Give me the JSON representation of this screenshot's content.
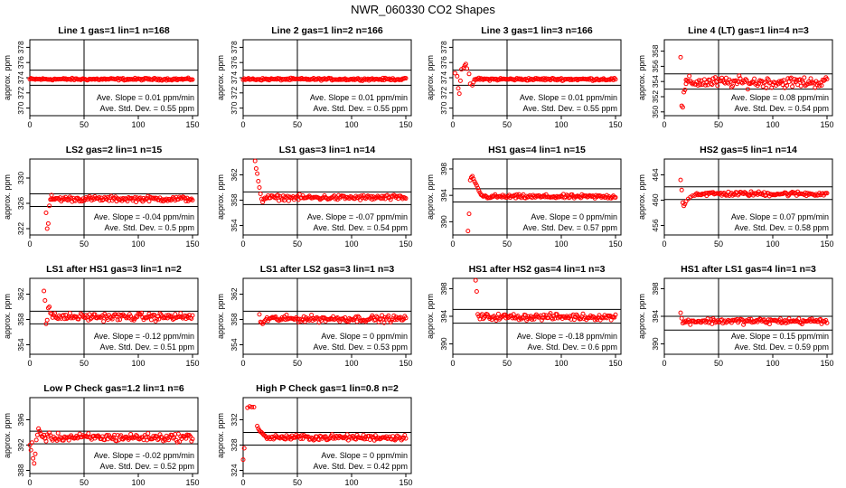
{
  "figure": {
    "title": "NWR_060330  CO2 Shapes"
  },
  "colors": {
    "points": "#ff0000",
    "axes": "#000000"
  },
  "chart_data": [
    {
      "type": "scatter",
      "title": "Line 1 gas=1 lin=1 n=168",
      "ylabel": "approx. ppm",
      "xlim": [
        0,
        155
      ],
      "ylim": [
        369,
        379
      ],
      "x_ticks": [
        0,
        50,
        100,
        150
      ],
      "y_ticks": [
        370,
        372,
        374,
        376,
        378
      ],
      "hlines": [
        373,
        375
      ],
      "vline": 50,
      "slope_text": "Ave. Slope =  0.01  ppm/min",
      "sd_text": "Ave. Std. Dev. =  0.55  ppm",
      "series": {
        "x_start": 0,
        "x_end": 150,
        "base": 373.8,
        "noise": 0.07,
        "head": []
      }
    },
    {
      "type": "scatter",
      "title": "Line 2 gas=1 lin=2 n=166",
      "ylabel": "approx. ppm",
      "xlim": [
        0,
        155
      ],
      "ylim": [
        369,
        379
      ],
      "x_ticks": [
        0,
        50,
        100,
        150
      ],
      "y_ticks": [
        370,
        372,
        374,
        376,
        378
      ],
      "hlines": [
        373,
        375
      ],
      "vline": 50,
      "slope_text": "Ave. Slope =  0.01  ppm/min",
      "sd_text": "Ave. Std. Dev. =  0.55  ppm",
      "series": {
        "x_start": 0,
        "x_end": 150,
        "base": 373.8,
        "noise": 0.07,
        "head": []
      }
    },
    {
      "type": "scatter",
      "title": "Line 3 gas=1 lin=3 n=166",
      "ylabel": "approx. ppm",
      "xlim": [
        0,
        155
      ],
      "ylim": [
        369,
        379
      ],
      "x_ticks": [
        0,
        50,
        100,
        150
      ],
      "y_ticks": [
        370,
        372,
        374,
        376,
        378
      ],
      "hlines": [
        373,
        375
      ],
      "vline": 50,
      "slope_text": "Ave. Slope =  0.01  ppm/min",
      "sd_text": "Ave. Std. Dev. =  0.55  ppm",
      "series": {
        "x_start": 20,
        "x_end": 150,
        "base": 373.8,
        "noise": 0.08,
        "head": [
          [
            2,
            374.6
          ],
          [
            4,
            374.2
          ],
          [
            5,
            372.6
          ],
          [
            6,
            371.9
          ],
          [
            7,
            373.6
          ],
          [
            8,
            375.1
          ],
          [
            10,
            375.3
          ],
          [
            11,
            375.6
          ],
          [
            12,
            375.8
          ],
          [
            13,
            375.2
          ],
          [
            15,
            374.5
          ],
          [
            16,
            373.2
          ],
          [
            18,
            373.0
          ],
          [
            19,
            373.4
          ]
        ]
      }
    },
    {
      "type": "scatter",
      "title": "Line 4 (LT) gas=1 lin=4 n=3",
      "ylabel": "approx. ppm",
      "xlim": [
        0,
        155
      ],
      "ylim": [
        349.5,
        359.5
      ],
      "x_ticks": [
        0,
        50,
        100,
        150
      ],
      "y_ticks": [
        350,
        352,
        354,
        356,
        358
      ],
      "hlines": [
        353,
        355
      ],
      "vline": 50,
      "slope_text": "Ave. Slope =  0.08  ppm/min",
      "sd_text": "Ave. Std. Dev. =  0.54  ppm",
      "series": {
        "x_start": 20,
        "x_end": 150,
        "base": 353.9,
        "noise": 0.35,
        "head": [
          [
            15,
            357.2
          ],
          [
            16,
            350.8
          ],
          [
            17,
            350.6
          ],
          [
            18,
            352.6
          ],
          [
            19,
            352.9
          ],
          [
            20,
            353.7
          ]
        ]
      }
    },
    {
      "type": "scatter",
      "title": "LS2 gas=2 lin=1 n=15",
      "ylabel": "approx. ppm",
      "xlim": [
        0,
        155
      ],
      "ylim": [
        321,
        333
      ],
      "x_ticks": [
        0,
        50,
        100,
        150
      ],
      "y_ticks": [
        322,
        326,
        330
      ],
      "hlines": [
        325.5,
        327.5
      ],
      "vline": 50,
      "slope_text": "Ave. Slope =  -0.04  ppm/min",
      "sd_text": "Ave. Std. Dev. =  0.5  ppm",
      "series": {
        "x_start": 20,
        "x_end": 150,
        "base": 326.7,
        "noise": 0.2,
        "head": [
          [
            15,
            324.5
          ],
          [
            16,
            322.0
          ],
          [
            17,
            322.8
          ],
          [
            18,
            325.6
          ],
          [
            19,
            326.6
          ],
          [
            20,
            327.3
          ]
        ]
      }
    },
    {
      "type": "scatter",
      "title": "LS1 gas=3 lin=1 n=14",
      "ylabel": "approx. ppm",
      "xlim": [
        0,
        155
      ],
      "ylim": [
        352.5,
        364.5
      ],
      "x_ticks": [
        0,
        50,
        100,
        150
      ],
      "y_ticks": [
        354,
        358,
        362
      ],
      "hlines": [
        357.3,
        359.3
      ],
      "vline": 50,
      "slope_text": "Ave. Slope =  -0.07  ppm/min",
      "sd_text": "Ave. Std. Dev. =  0.54  ppm",
      "series": {
        "x_start": 20,
        "x_end": 150,
        "base": 358.4,
        "noise": 0.2,
        "head": [
          [
            11,
            364.2
          ],
          [
            12,
            363.0
          ],
          [
            13,
            362.2
          ],
          [
            14,
            361.0
          ],
          [
            15,
            360.0
          ],
          [
            16,
            359.0
          ],
          [
            17,
            358.2
          ],
          [
            18,
            357.7
          ],
          [
            19,
            358.1
          ]
        ]
      }
    },
    {
      "type": "scatter",
      "title": "HS1 gas=4 lin=1 n=15",
      "ylabel": "approx. ppm",
      "xlim": [
        0,
        155
      ],
      "ylim": [
        388,
        399.5
      ],
      "x_ticks": [
        0,
        50,
        100,
        150
      ],
      "y_ticks": [
        390,
        394,
        398
      ],
      "hlines": [
        393,
        395
      ],
      "vline": 50,
      "slope_text": "Ave. Slope =  0  ppm/min",
      "sd_text": "Ave. Std. Dev. =  0.57  ppm",
      "series": {
        "x_start": 28,
        "x_end": 150,
        "base": 393.8,
        "noise": 0.15,
        "head": [
          [
            14,
            388.6
          ],
          [
            15,
            391.2
          ],
          [
            16,
            396.3
          ],
          [
            17,
            396.7
          ],
          [
            18,
            396.9
          ],
          [
            19,
            396.5
          ],
          [
            20,
            396.1
          ],
          [
            21,
            395.8
          ],
          [
            22,
            395.5
          ],
          [
            23,
            395.1
          ],
          [
            24,
            394.7
          ],
          [
            25,
            394.4
          ],
          [
            26,
            394.1
          ],
          [
            27,
            394.0
          ]
        ]
      }
    },
    {
      "type": "scatter",
      "title": "HS2 gas=5 lin=1 n=14",
      "ylabel": "approx. ppm",
      "xlim": [
        0,
        155
      ],
      "ylim": [
        454.5,
        466.5
      ],
      "x_ticks": [
        0,
        50,
        100,
        150
      ],
      "y_ticks": [
        456,
        460,
        464
      ],
      "hlines": [
        460.1,
        462.1
      ],
      "vline": 50,
      "slope_text": "Ave. Slope =  0.07  ppm/min",
      "sd_text": "Ave. Std. Dev. =  0.58  ppm",
      "series": {
        "x_start": 28,
        "x_end": 150,
        "base": 461.0,
        "noise": 0.18,
        "head": [
          [
            15,
            463.2
          ],
          [
            16,
            461.6
          ],
          [
            17,
            459.6
          ],
          [
            18,
            459.1
          ],
          [
            19,
            459.4
          ],
          [
            20,
            459.8
          ],
          [
            22,
            460.2
          ],
          [
            24,
            460.5
          ],
          [
            26,
            460.7
          ]
        ]
      }
    },
    {
      "type": "scatter",
      "title": "LS1 after HS1 gas=3 lin=1 n=2",
      "ylabel": "approx. ppm",
      "xlim": [
        0,
        155
      ],
      "ylim": [
        352.5,
        364.5
      ],
      "x_ticks": [
        0,
        50,
        100,
        150
      ],
      "y_ticks": [
        354,
        358,
        362
      ],
      "hlines": [
        357.3,
        359.3
      ],
      "vline": 50,
      "slope_text": "Ave. Slope =  -0.12  ppm/min",
      "sd_text": "Ave. Std. Dev. =  0.51  ppm",
      "series": {
        "x_start": 22,
        "x_end": 150,
        "base": 358.4,
        "noise": 0.28,
        "head": [
          [
            13,
            362.5
          ],
          [
            14,
            361.0
          ],
          [
            15,
            357.3
          ],
          [
            16,
            357.9
          ],
          [
            17,
            359.8
          ],
          [
            18,
            360.0
          ],
          [
            19,
            359.0
          ],
          [
            20,
            358.9
          ],
          [
            21,
            358.3
          ]
        ]
      }
    },
    {
      "type": "scatter",
      "title": "LS1 after LS2 gas=3 lin=1 n=3",
      "ylabel": "approx. ppm",
      "xlim": [
        0,
        155
      ],
      "ylim": [
        352.5,
        364.5
      ],
      "x_ticks": [
        0,
        50,
        100,
        150
      ],
      "y_ticks": [
        354,
        358,
        362
      ],
      "hlines": [
        357.3,
        359.3
      ],
      "vline": 50,
      "slope_text": "Ave. Slope =  0  ppm/min",
      "sd_text": "Ave. Std. Dev. =  0.53  ppm",
      "series": {
        "x_start": 22,
        "x_end": 150,
        "base": 358.1,
        "noise": 0.25,
        "head": [
          [
            15,
            358.8
          ],
          [
            16,
            357.6
          ],
          [
            17,
            357.5
          ],
          [
            18,
            357.3
          ],
          [
            19,
            357.6
          ],
          [
            20,
            357.8
          ],
          [
            21,
            358.0
          ]
        ]
      }
    },
    {
      "type": "scatter",
      "title": "HS1 after HS2 gas=4 lin=1 n=3",
      "ylabel": "approx. ppm",
      "xlim": [
        0,
        155
      ],
      "ylim": [
        388.5,
        399.5
      ],
      "x_ticks": [
        0,
        50,
        100,
        150
      ],
      "y_ticks": [
        390,
        394,
        398
      ],
      "hlines": [
        393,
        395
      ],
      "vline": 50,
      "slope_text": "Ave. Slope =  -0.18  ppm/min",
      "sd_text": "Ave. Std. Dev. =  0.6  ppm",
      "series": {
        "x_start": 28,
        "x_end": 150,
        "base": 393.9,
        "noise": 0.22,
        "head": [
          [
            21,
            399.2
          ],
          [
            22,
            397.6
          ],
          [
            23,
            394.3
          ],
          [
            24,
            394.0
          ],
          [
            25,
            393.6
          ],
          [
            26,
            394.1
          ],
          [
            27,
            394.3
          ]
        ]
      }
    },
    {
      "type": "scatter",
      "title": "HS1 after LS1 gas=4 lin=1 n=3",
      "ylabel": "approx. ppm",
      "xlim": [
        0,
        155
      ],
      "ylim": [
        388.5,
        399.5
      ],
      "x_ticks": [
        0,
        50,
        100,
        150
      ],
      "y_ticks": [
        390,
        394,
        398
      ],
      "hlines": [
        392,
        394
      ],
      "vline": 50,
      "slope_text": "Ave. Slope =  0.15  ppm/min",
      "sd_text": "Ave. Std. Dev. =  0.59  ppm",
      "series": {
        "x_start": 20,
        "x_end": 150,
        "base": 393.3,
        "noise": 0.2,
        "head": [
          [
            15,
            394.5
          ],
          [
            16,
            393.7
          ],
          [
            17,
            393.0
          ],
          [
            18,
            393.2
          ],
          [
            19,
            393.1
          ]
        ]
      }
    },
    {
      "type": "scatter",
      "title": "Low P Check gas=1.2 lin=1 n=6",
      "ylabel": "approx. ppm",
      "xlim": [
        0,
        155
      ],
      "ylim": [
        387.5,
        399.5
      ],
      "x_ticks": [
        0,
        50,
        100,
        150
      ],
      "y_ticks": [
        388,
        392,
        396
      ],
      "hlines": [
        392.2,
        394.2
      ],
      "vline": 50,
      "slope_text": "Ave. Slope =  -0.02  ppm/min",
      "sd_text": "Ave. Std. Dev. =  0.52  ppm",
      "series": {
        "x_start": 12,
        "x_end": 150,
        "base": 393.2,
        "noise": 0.3,
        "head": [
          [
            0,
            392.0
          ],
          [
            1,
            391.2
          ],
          [
            2,
            392.4
          ],
          [
            3,
            389.9
          ],
          [
            4,
            389.1
          ],
          [
            5,
            390.6
          ],
          [
            6,
            392.8
          ],
          [
            7,
            393.6
          ],
          [
            8,
            394.6
          ],
          [
            9,
            394.2
          ],
          [
            10,
            393.8
          ],
          [
            11,
            393.4
          ]
        ]
      }
    },
    {
      "type": "scatter",
      "title": "High P Check gas=1 lin=0.8 n=2",
      "ylabel": "approx. ppm",
      "xlim": [
        0,
        155
      ],
      "ylim": [
        323.5,
        335.5
      ],
      "x_ticks": [
        0,
        50,
        100,
        150
      ],
      "y_ticks": [
        324,
        328,
        332
      ],
      "hlines": [
        328,
        330
      ],
      "vline": 50,
      "slope_text": "Ave. Slope =  0  ppm/min",
      "sd_text": "Ave. Std. Dev. =  0.42  ppm",
      "series": {
        "x_start": 22,
        "x_end": 150,
        "base": 329.2,
        "noise": 0.22,
        "head": [
          [
            0,
            325.7
          ],
          [
            1,
            327.5
          ],
          [
            4,
            333.9
          ],
          [
            6,
            334.1
          ],
          [
            8,
            334.0
          ],
          [
            10,
            334.0
          ],
          [
            13,
            331.0
          ],
          [
            14,
            330.6
          ],
          [
            15,
            330.3
          ],
          [
            16,
            330.1
          ],
          [
            17,
            330.0
          ],
          [
            18,
            329.8
          ],
          [
            19,
            329.6
          ],
          [
            20,
            329.5
          ],
          [
            21,
            329.3
          ]
        ]
      }
    }
  ]
}
